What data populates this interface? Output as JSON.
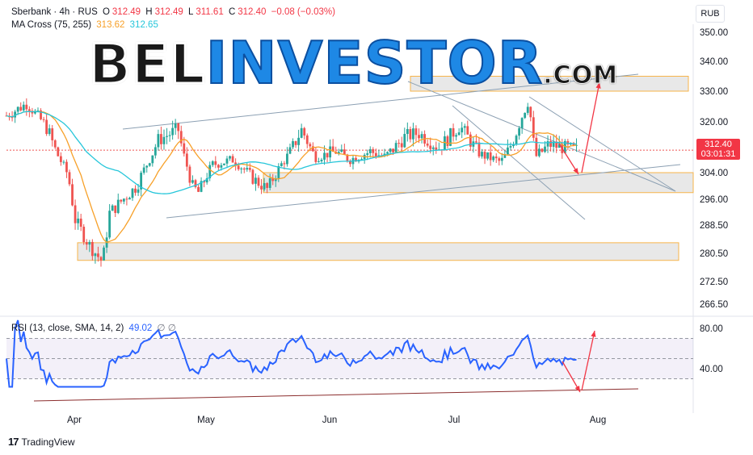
{
  "header": {
    "symbol": "Sberbank · 4h · RUS",
    "open_label": "O",
    "open": "312.49",
    "high_label": "H",
    "high": "312.49",
    "low_label": "L",
    "low": "311.61",
    "close_label": "C",
    "close": "312.40",
    "change": "−0.08 (−0.03%)",
    "ma_label": "MA Cross (75, 255)",
    "ma_fast": "313.62",
    "ma_slow": "312.65"
  },
  "currency": "RUB",
  "price_tag": {
    "price": "312.40",
    "countdown": "03:01:31"
  },
  "watermark": {
    "part1": "BEL",
    "part2": "INVESTOR",
    "part3": ".COM"
  },
  "rsi_header": {
    "label": "RSI (13, close, SMA, 14, 2)",
    "value": "49.02",
    "icons": "∅ ∅"
  },
  "footer": {
    "logo": "17",
    "brand": "TradingView"
  },
  "colors": {
    "up": "#26a69a",
    "down": "#ef5350",
    "ma_fast": "#f7a028",
    "ma_slow": "#26c6da",
    "rsi": "#2962ff",
    "zone_fill": "#e0e0e0",
    "zone_border": "#f7b44a",
    "arrow": "#f23645"
  },
  "chart_data": [
    {
      "type": "candlestick",
      "title": "Sberbank · 4h · RUS",
      "y_ticks": [
        350.0,
        340.0,
        330.0,
        320.0,
        312.0,
        304.0,
        296.0,
        288.5,
        280.5,
        272.5,
        266.5
      ],
      "y_tick_labels": [
        "350.00",
        "340.00",
        "330.00",
        "320.00",
        "312.00",
        "304.00",
        "296.00",
        "288.50",
        "280.50",
        "272.50",
        "266.50"
      ],
      "x_ticks": [
        "Apr",
        "May",
        "Jun",
        "Jul",
        "Aug"
      ],
      "last_price": 312.4,
      "series": [
        {
          "name": "MA 75",
          "color": "#f7a028"
        },
        {
          "name": "MA 255",
          "color": "#26c6da"
        }
      ],
      "approx_path": {
        "x": [
          0,
          0.03,
          0.06,
          0.09,
          0.1,
          0.12,
          0.14,
          0.15,
          0.17,
          0.19,
          0.22,
          0.25,
          0.27,
          0.28,
          0.3,
          0.33,
          0.36,
          0.38,
          0.4,
          0.43,
          0.45,
          0.48,
          0.5,
          0.53,
          0.55,
          0.58,
          0.6,
          0.63,
          0.66,
          0.69,
          0.72,
          0.74,
          0.76,
          0.77,
          0.79,
          0.81,
          0.83
        ],
        "close": [
          322,
          326,
          318,
          303,
          290,
          283,
          278,
          292,
          296,
          300,
          315,
          318,
          300,
          298,
          307,
          309,
          302,
          299,
          307,
          318,
          310,
          312,
          309,
          312,
          310,
          316,
          317,
          313,
          319,
          311,
          308,
          316,
          327,
          310,
          314,
          313,
          312.4
        ]
      },
      "zones": [
        [
          330.0,
          335.0
        ],
        [
          298.0,
          304.0
        ],
        [
          278.5,
          283.5
        ]
      ],
      "annotations": [
        "upward channel",
        "downward channel",
        "forecast arrows"
      ]
    },
    {
      "type": "line",
      "title": "RSI (13, close, SMA, 14, 2)",
      "y_ticks": [
        80.0,
        40.0
      ],
      "y_tick_labels": [
        "80.00",
        "40.00"
      ],
      "band": [
        30,
        70
      ],
      "last_value": 49.02
    }
  ]
}
